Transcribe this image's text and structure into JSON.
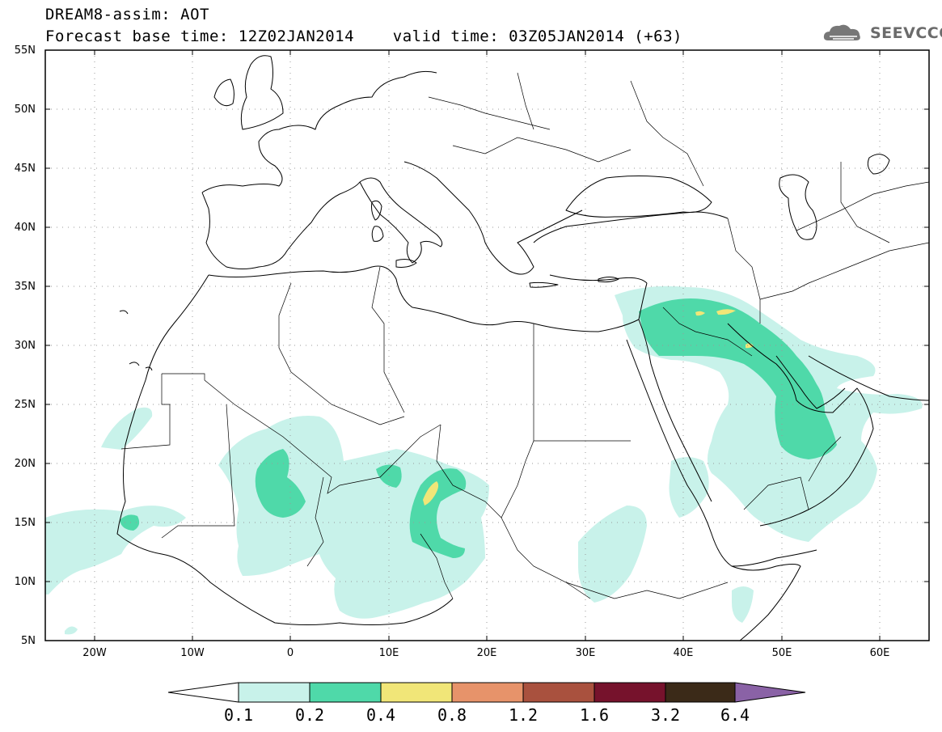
{
  "header": {
    "title_line1": "DREAM8-assim: AOT",
    "title_line2": "Forecast base time: 12Z02JAN2014    valid time: 03Z05JAN2014 (+63)"
  },
  "logo": {
    "text": "SEEVCCC",
    "icon": "cloud-logo-icon"
  },
  "map": {
    "projection": "lat-lon",
    "lon_range": [
      -25,
      65
    ],
    "lat_range": [
      5,
      55
    ],
    "grid": "dotted",
    "lat_labels": [
      "55N",
      "50N",
      "45N",
      "40N",
      "35N",
      "30N",
      "25N",
      "20N",
      "15N",
      "10N",
      "5N"
    ],
    "lon_labels": [
      "20W",
      "10W",
      "0",
      "10E",
      "20E",
      "30E",
      "40E",
      "50E",
      "60E"
    ],
    "field": "Aerosol Optical Thickness"
  },
  "colorbar": {
    "levels": [
      "0.1",
      "0.2",
      "0.4",
      "0.8",
      "1.2",
      "1.6",
      "3.2",
      "6.4"
    ],
    "colors": [
      "#c8f2ea",
      "#4fd9a9",
      "#f1e678",
      "#e7936a",
      "#a9513e",
      "#76122c",
      "#3b2a18",
      "#8a62a6"
    ],
    "below_color": "#ffffff"
  },
  "colors": {
    "frame": "#000000",
    "coast": "#000000",
    "grid": "#999999"
  }
}
